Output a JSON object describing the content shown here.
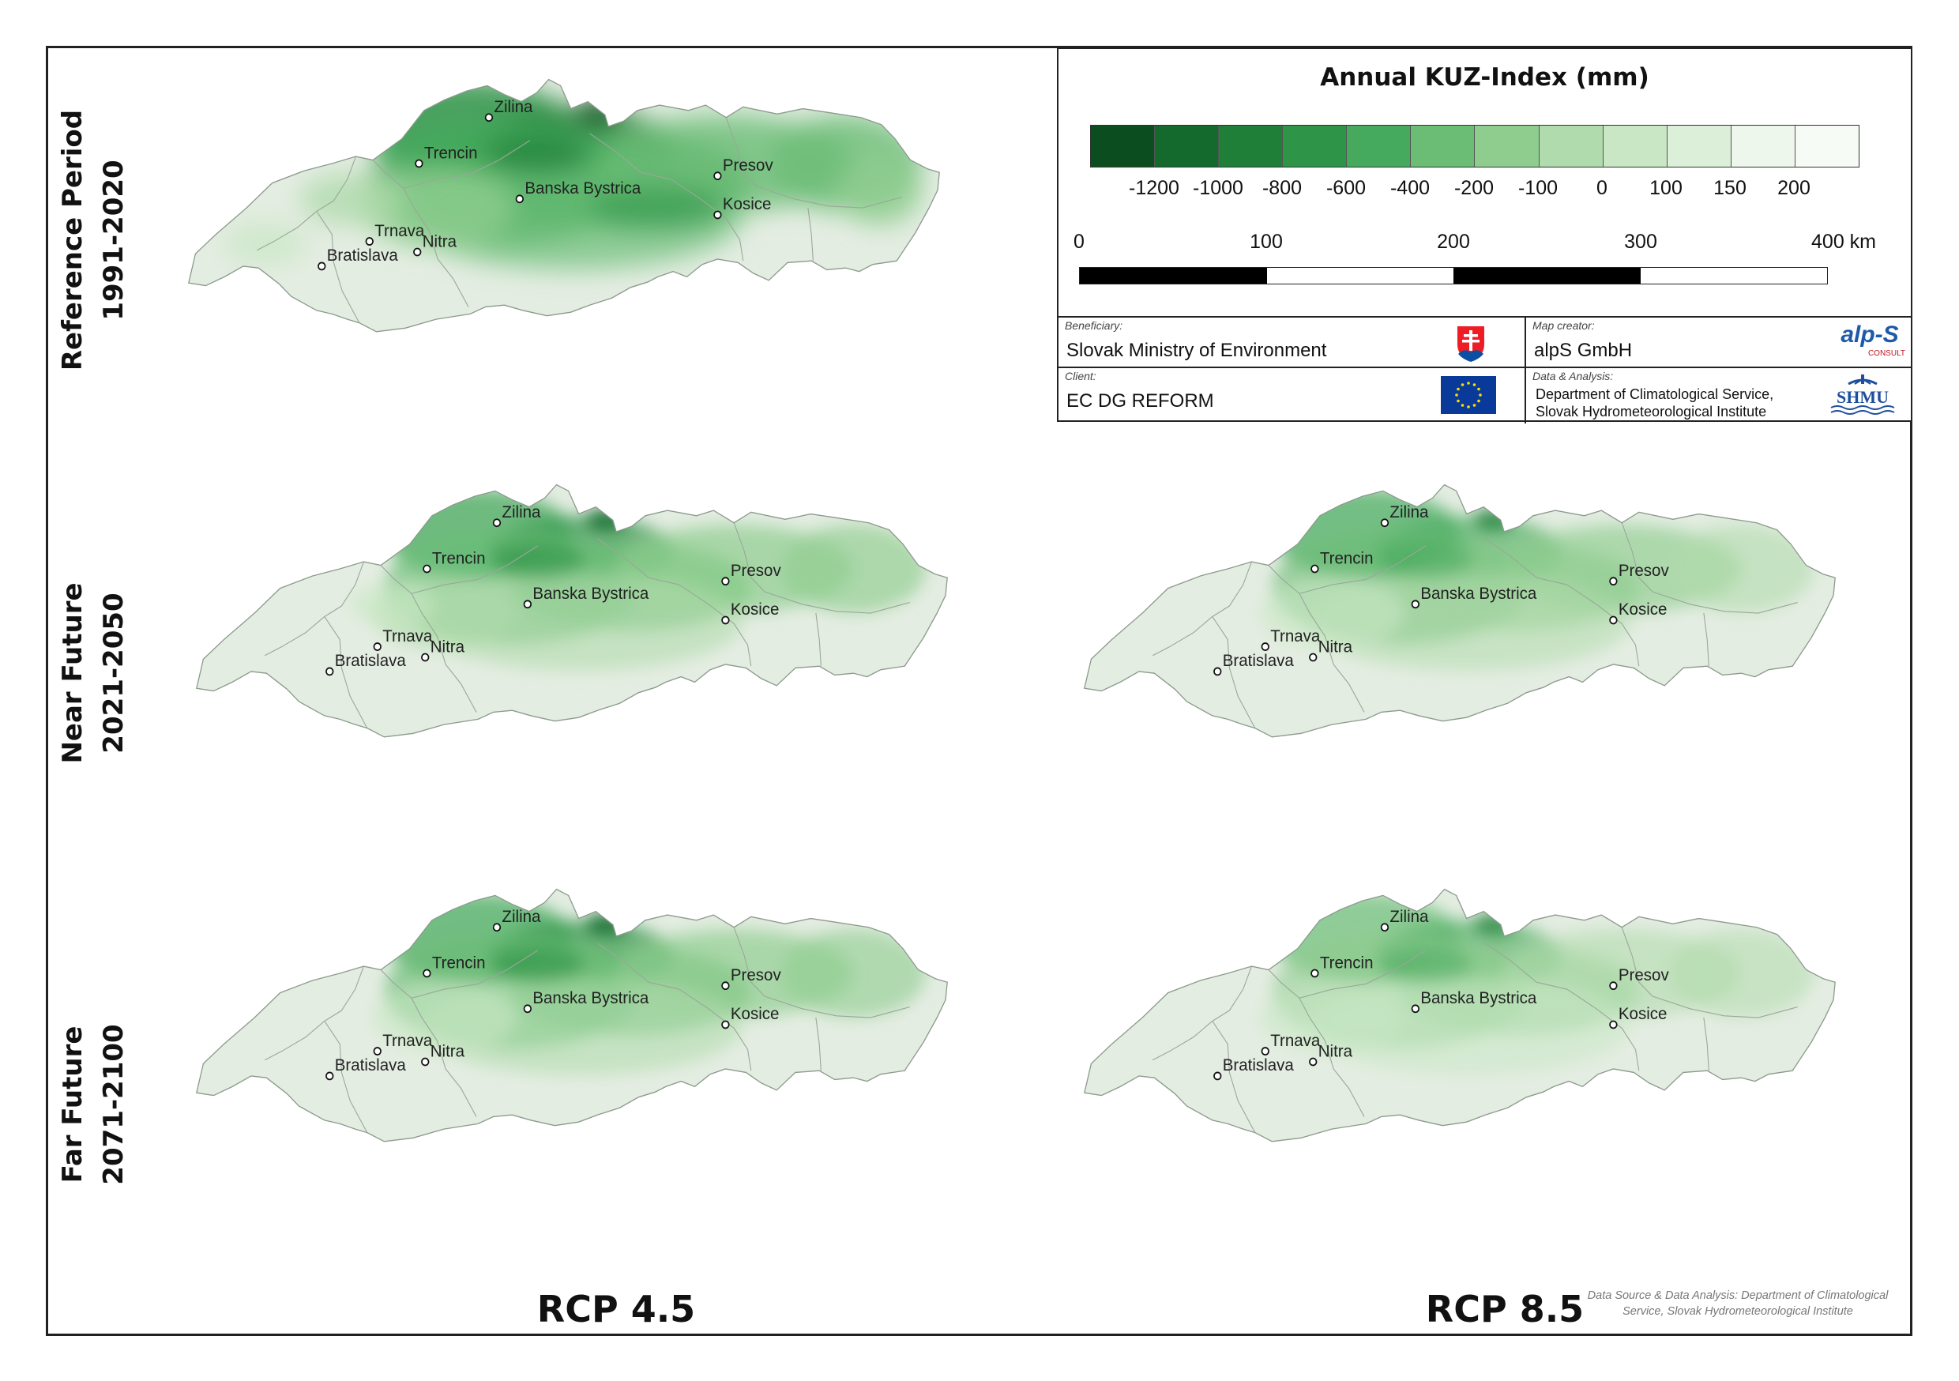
{
  "legend": {
    "title": "Annual KUZ-Index (mm)",
    "colors": [
      "#0b4d1e",
      "#136a2c",
      "#1f7f38",
      "#2e9448",
      "#45aa5d",
      "#6bbd76",
      "#8fcd8f",
      "#b0dbac",
      "#c9e7c4",
      "#dcefd8",
      "#eef7eb",
      "#f7fbf5"
    ],
    "ticks": [
      "-1200",
      "-1000",
      "-800",
      "-600",
      "-400",
      "-200",
      "-100",
      "0",
      "100",
      "150",
      "200"
    ],
    "scale_labels": [
      "0",
      "100",
      "200",
      "300",
      "400 km"
    ]
  },
  "info": {
    "beneficiary_caption": "Beneficiary:",
    "beneficiary": "Slovak Ministry of Environment",
    "client_caption": "Client:",
    "client": "EC DG REFORM",
    "map_creator_caption": "Map creator:",
    "map_creator": "alpS GmbH",
    "data_caption": "Data & Analysis:",
    "data_line1": "Department of Climatological Service,",
    "data_line2": "Slovak Hydrometeorological Institute",
    "alps_logo_text": "alp-S",
    "alps_logo_sub": "CONSULT",
    "shmu_logo_text": "SHMU"
  },
  "rows": [
    {
      "line1": "Reference Period",
      "line2": "1991-2020"
    },
    {
      "line1": "Near Future",
      "line2": "2021-2050"
    },
    {
      "line1": "Far Future",
      "line2": "2071-2100"
    }
  ],
  "columns": [
    "RCP 4.5",
    "RCP 8.5"
  ],
  "cities": {
    "zilina": "Zilina",
    "trencin": "Trencin",
    "presov": "Presov",
    "banska_bystrica": "Banska Bystrica",
    "kosice": "Kosice",
    "trnava": "Trnava",
    "nitra": "Nitra",
    "bratislava": "Bratislava"
  },
  "source_line1": "Data Source & Data Analysis: Department of Climatological",
  "source_line2": "Service, Slovak Hydrometeorological Institute"
}
